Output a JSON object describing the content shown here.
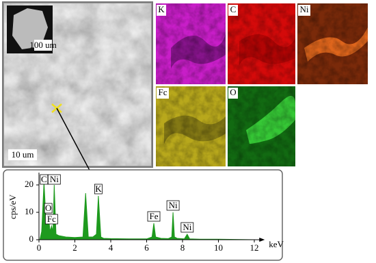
{
  "images": {
    "inset_scale": "100 um",
    "main_scale": "10 um"
  },
  "maps": [
    {
      "label": "K"
    },
    {
      "label": "C"
    },
    {
      "label": "Ni"
    },
    {
      "label": "Fc"
    },
    {
      "label": "O"
    }
  ],
  "chart_data": {
    "type": "area",
    "xlabel": "keV",
    "ylabel": "cps/eV",
    "color": "#1e9a1e",
    "x": [
      0.05,
      0.15,
      0.28,
      0.4,
      0.52,
      0.62,
      0.7,
      0.78,
      0.85,
      0.95,
      1.1,
      1.5,
      2.0,
      2.45,
      2.6,
      2.75,
      3.0,
      3.2,
      3.31,
      3.45,
      3.6,
      4.0,
      5.0,
      6.0,
      6.3,
      6.4,
      6.5,
      6.8,
      7.2,
      7.4,
      7.47,
      7.55,
      7.7,
      8.1,
      8.26,
      8.4,
      9,
      10,
      11,
      12
    ],
    "values": [
      0,
      3,
      21,
      6,
      9,
      3,
      5,
      3,
      20,
      2,
      1.5,
      1,
      0.8,
      1,
      17,
      1,
      1,
      2,
      16,
      1,
      0.5,
      0.4,
      0.3,
      0.3,
      1,
      6,
      1,
      0.5,
      0.4,
      1,
      10,
      1,
      0.5,
      0.3,
      2,
      0.3,
      0.2,
      0.2,
      0.1,
      0
    ],
    "xlim": [
      0,
      12.2
    ],
    "ylim": [
      0,
      24
    ],
    "xticks": [
      0,
      2,
      4,
      6,
      8,
      10,
      12
    ],
    "yticks": [
      0,
      10,
      20
    ],
    "annotations": [
      {
        "text": "C",
        "x": 0.28,
        "y": 21
      },
      {
        "text": "Ni",
        "x": 0.85,
        "y": 20
      },
      {
        "text": "O",
        "x": 0.52,
        "y": 9
      },
      {
        "text": "Fc",
        "x": 0.7,
        "y": 5
      },
      {
        "text": "K",
        "x": 3.31,
        "y": 16
      },
      {
        "text": "Fe",
        "x": 6.4,
        "y": 6
      },
      {
        "text": "Ni",
        "x": 7.47,
        "y": 10
      },
      {
        "text": "Ni",
        "x": 8.26,
        "y": 2
      }
    ]
  }
}
